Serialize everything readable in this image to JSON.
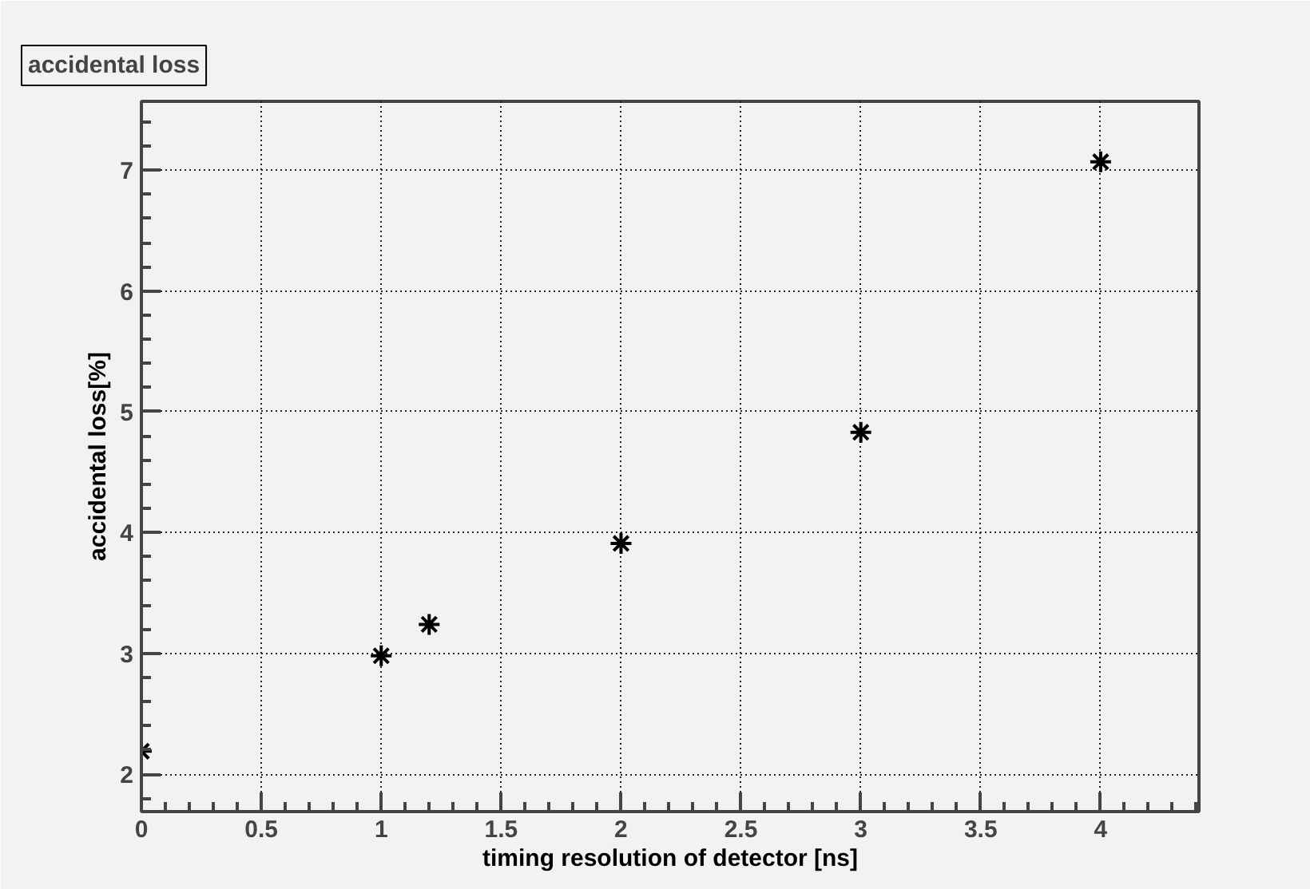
{
  "chart_data": {
    "type": "scatter",
    "title": "accidental loss",
    "xlabel": "timing resolution of detector [ns]",
    "ylabel": "accidental loss[%]",
    "x": [
      0,
      1,
      1.2,
      2,
      3,
      4
    ],
    "series": [
      {
        "color": "#000000",
        "values": [
          2.19,
          2.98,
          3.24,
          3.91,
          4.83,
          7.07
        ]
      }
    ],
    "marker": "cross",
    "grid": true,
    "xlim": [
      0,
      4.41
    ],
    "ylim": [
      1.69,
      7.57
    ],
    "xticks": [
      0,
      0.5,
      1,
      1.5,
      2,
      2.5,
      3,
      3.5,
      4
    ],
    "yticks": [
      2,
      3,
      4,
      5,
      6,
      7
    ]
  }
}
